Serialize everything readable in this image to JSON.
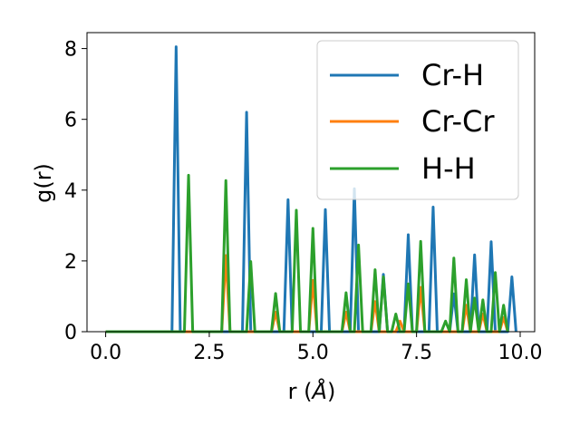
{
  "chart_data": {
    "type": "line",
    "xlabel": "r (",
    "xlabel_unit": "Å",
    "xlabel_close": ")",
    "ylabel": "g(r)",
    "xlim": [
      -0.45,
      10.35
    ],
    "ylim": [
      0,
      8.45
    ],
    "x_ticks": [
      0.0,
      2.5,
      5.0,
      7.5,
      10.0
    ],
    "x_tick_labels": [
      "0.0",
      "2.5",
      "5.0",
      "7.5",
      "10.0"
    ],
    "y_ticks": [
      0,
      2,
      4,
      6,
      8
    ],
    "y_tick_labels": [
      "0",
      "2",
      "4",
      "6",
      "8"
    ],
    "grid": false,
    "legend_position": "top-right",
    "series": [
      {
        "name": "Cr-H",
        "color": "#1f77b4",
        "x": [
          0.0,
          1.6,
          1.7,
          1.8,
          3.3,
          3.4,
          3.5,
          4.3,
          4.4,
          4.5,
          5.2,
          5.3,
          5.4,
          5.9,
          6.0,
          6.1,
          6.6,
          6.7,
          6.8,
          7.2,
          7.3,
          7.4,
          7.8,
          7.9,
          8.0,
          8.3,
          8.4,
          8.5,
          8.8,
          8.9,
          9.0,
          9.2,
          9.3,
          9.4,
          9.7,
          9.8,
          9.9
        ],
        "y": [
          0,
          0,
          8.05,
          0,
          0,
          6.2,
          0,
          0,
          3.73,
          0,
          0,
          3.45,
          0,
          0,
          4.04,
          0,
          0,
          1.62,
          0,
          0,
          2.74,
          0,
          0,
          3.52,
          0,
          0,
          1.07,
          0,
          0,
          2.17,
          0,
          0,
          2.54,
          0,
          0,
          1.55,
          0
        ]
      },
      {
        "name": "Cr-Cr",
        "color": "#ff7f0e",
        "x": [
          0.0,
          2.8,
          2.9,
          3.0,
          4.0,
          4.1,
          4.2,
          4.9,
          5.0,
          5.1,
          5.7,
          5.8,
          5.9,
          6.4,
          6.5,
          6.6,
          7.0,
          7.1,
          7.2,
          7.5,
          7.6,
          7.7,
          8.6,
          8.7,
          8.8,
          9.0,
          9.1,
          9.2,
          9.5,
          9.6,
          9.7
        ],
        "y": [
          0,
          0,
          2.15,
          0,
          0,
          0.55,
          0,
          0,
          1.45,
          0,
          0,
          0.55,
          0,
          0,
          0.85,
          0,
          0,
          0.3,
          0,
          0,
          1.25,
          0,
          0,
          0.75,
          0,
          0,
          0.5,
          0,
          0,
          0.4,
          0
        ]
      },
      {
        "name": "H-H",
        "color": "#2ca02c",
        "x": [
          0.0,
          1.9,
          2.0,
          2.1,
          2.8,
          2.9,
          3.0,
          3.4,
          3.5,
          3.6,
          4.0,
          4.1,
          4.2,
          4.5,
          4.6,
          4.7,
          4.9,
          5.0,
          5.1,
          5.7,
          5.8,
          5.9,
          6.0,
          6.1,
          6.2,
          6.4,
          6.5,
          6.6,
          6.7,
          6.8,
          6.9,
          7.0,
          7.1,
          7.2,
          7.3,
          7.4,
          7.5,
          7.6,
          7.7,
          8.1,
          8.2,
          8.3,
          8.4,
          8.5,
          8.6,
          8.7,
          8.8,
          8.9,
          9.0,
          9.1,
          9.2,
          9.3,
          9.4,
          9.5,
          9.6,
          9.7
        ],
        "y": [
          0,
          0,
          4.42,
          0,
          0,
          4.27,
          0,
          0,
          1.98,
          0,
          0,
          1.08,
          0,
          0,
          3.43,
          0,
          0,
          2.92,
          0,
          0,
          1.1,
          0,
          0,
          2.45,
          0,
          0,
          1.75,
          0,
          1.55,
          0,
          0,
          0.5,
          0,
          0,
          1.35,
          0,
          0,
          2.55,
          0,
          0,
          0.3,
          0,
          2.08,
          0,
          0,
          1.47,
          0,
          0.95,
          0,
          0.9,
          0,
          0,
          1.67,
          0,
          0.75,
          0
        ]
      }
    ]
  }
}
